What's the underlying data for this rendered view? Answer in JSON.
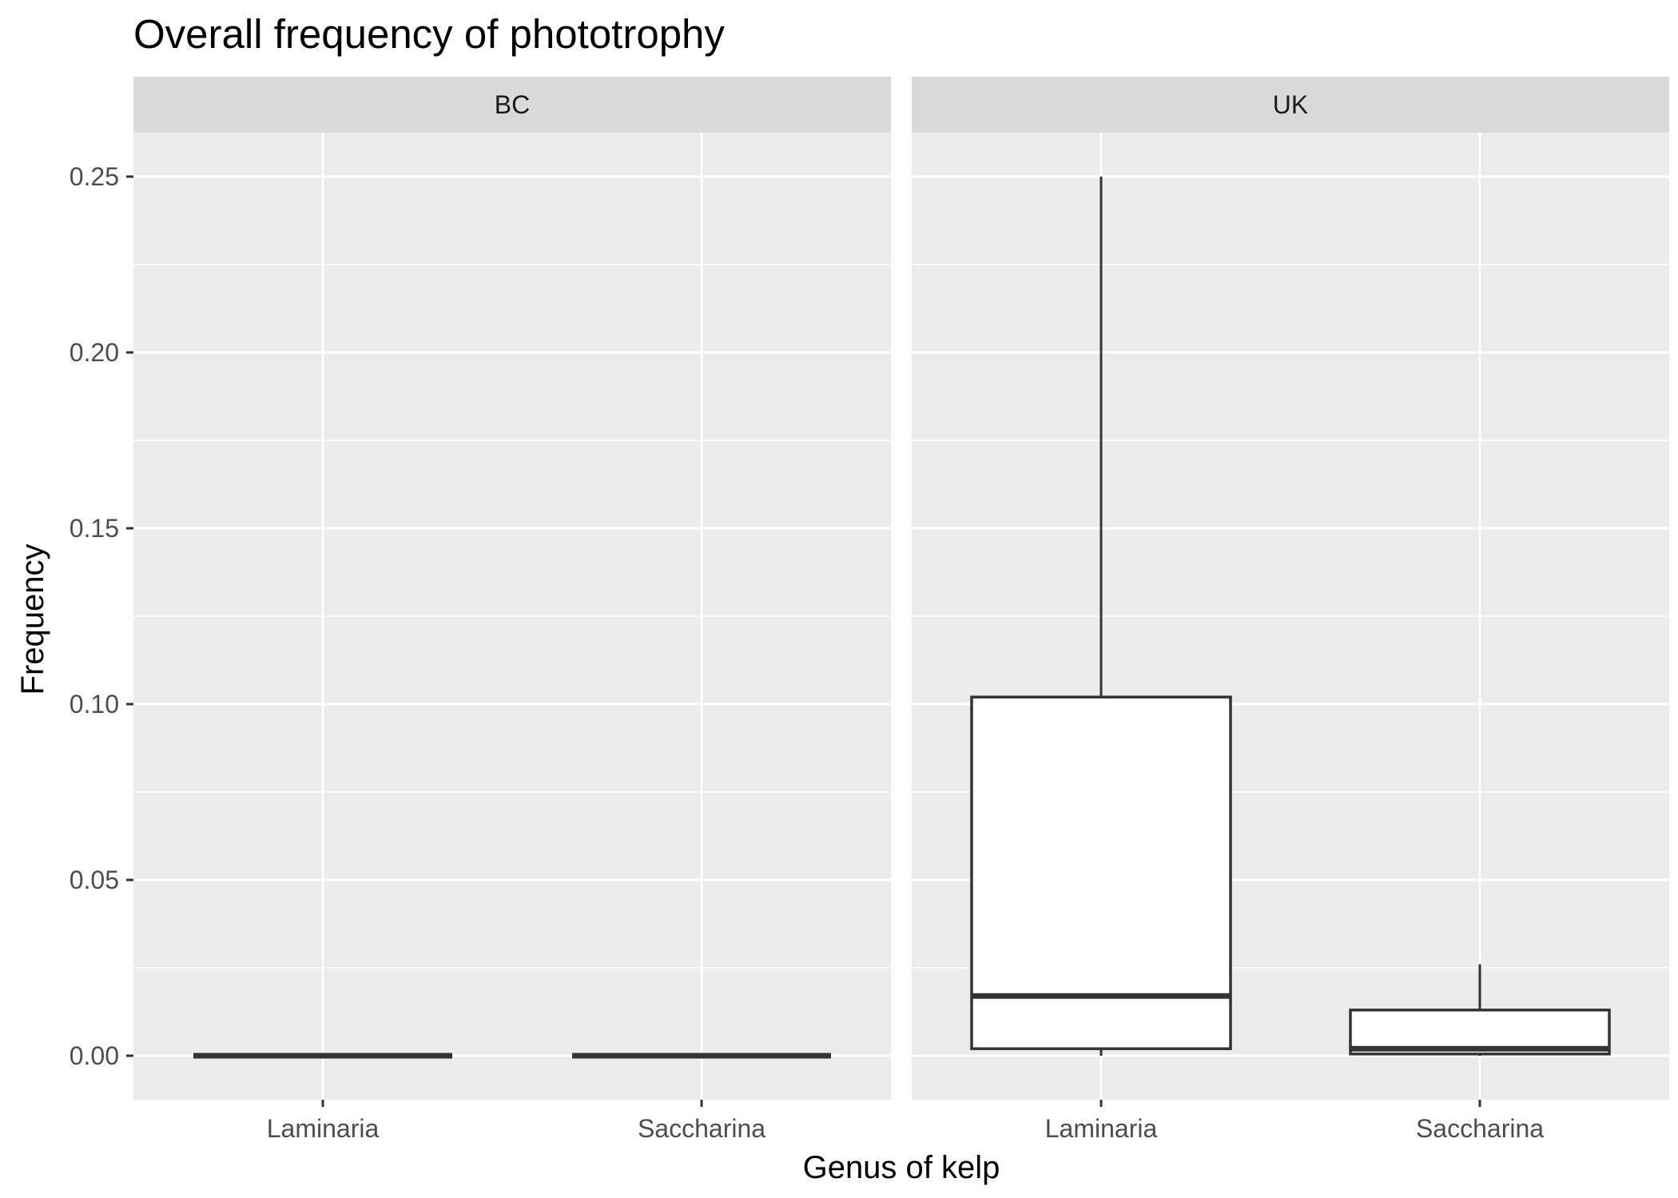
{
  "chart_data": {
    "type": "boxplot",
    "title": "Overall frequency of phototrophy",
    "xlabel": "Genus of kelp",
    "ylabel": "Frequency",
    "ylim": [
      -0.0125,
      0.2625
    ],
    "yticks": [
      0.0,
      0.05,
      0.1,
      0.15,
      0.2,
      0.25
    ],
    "ytick_labels": [
      "0.00",
      "0.05",
      "0.10",
      "0.15",
      "0.20",
      "0.25"
    ],
    "categories": [
      "Laminaria",
      "Saccharina"
    ],
    "grid": true,
    "facets": [
      {
        "label": "BC",
        "boxes": [
          {
            "category": "Laminaria",
            "lower_whisker": 0.0,
            "q1": 0.0,
            "median": 0.0,
            "q3": 0.0,
            "upper_whisker": 0.0
          },
          {
            "category": "Saccharina",
            "lower_whisker": 0.0,
            "q1": 0.0,
            "median": 0.0,
            "q3": 0.0,
            "upper_whisker": 0.0
          }
        ]
      },
      {
        "label": "UK",
        "boxes": [
          {
            "category": "Laminaria",
            "lower_whisker": 0.0,
            "q1": 0.002,
            "median": 0.017,
            "q3": 0.102,
            "upper_whisker": 0.25
          },
          {
            "category": "Saccharina",
            "lower_whisker": 0.0,
            "q1": 0.0005,
            "median": 0.002,
            "q3": 0.013,
            "upper_whisker": 0.026
          }
        ]
      }
    ]
  }
}
